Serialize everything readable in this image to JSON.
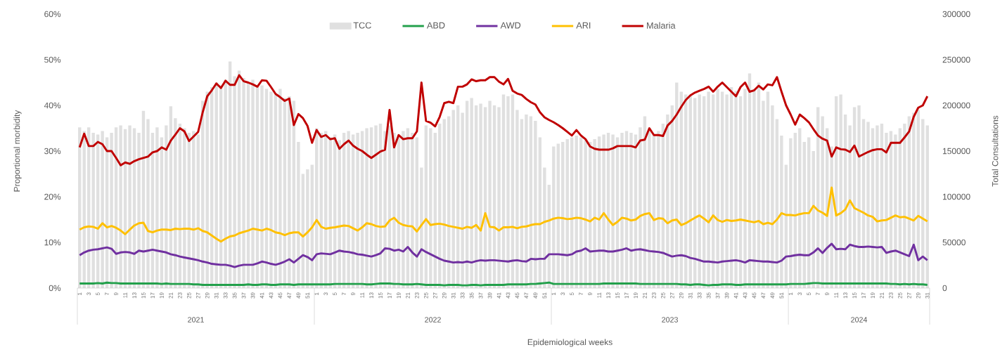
{
  "chart_data": {
    "type": "line",
    "categories": [
      "1",
      null,
      "3",
      null,
      "5",
      null,
      "7",
      null,
      "9",
      null,
      "11",
      null,
      "13",
      null,
      "15",
      null,
      "17",
      null,
      "19",
      null,
      "21",
      null,
      "23",
      null,
      "25",
      null,
      "27",
      null,
      "29",
      null,
      "31",
      null,
      "33",
      null,
      "35",
      null,
      "37",
      null,
      "39",
      null,
      "41",
      null,
      "43",
      null,
      "45",
      null,
      "47",
      null,
      "49",
      null,
      "51",
      null,
      "1",
      null,
      "3",
      null,
      "5",
      null,
      "7",
      null,
      "9",
      null,
      "11",
      null,
      "13",
      null,
      "15",
      null,
      "17",
      null,
      "19",
      null,
      "21",
      null,
      "23",
      null,
      "25",
      null,
      "27",
      null,
      "29",
      null,
      "31",
      null,
      "33",
      null,
      "35",
      null,
      "37",
      null,
      "39",
      null,
      "41",
      null,
      "43",
      null,
      "45",
      null,
      "47",
      null,
      "49",
      null,
      "51",
      null,
      "1",
      null,
      "3",
      null,
      "5",
      null,
      "7",
      null,
      "9",
      null,
      "11",
      null,
      "13",
      null,
      "15",
      null,
      "17",
      null,
      "19",
      null,
      "21",
      null,
      "23",
      null,
      "25",
      null,
      "27",
      null,
      "29",
      null,
      "31",
      null,
      "33",
      null,
      "35",
      null,
      "37",
      null,
      "39",
      null,
      "41",
      null,
      "43",
      null,
      "45",
      null,
      "47",
      null,
      "49",
      null,
      "51",
      null,
      "1",
      null,
      "3",
      null,
      "5",
      null,
      "7",
      null,
      "9",
      null,
      "11",
      null,
      "13",
      null,
      "15",
      null,
      "17",
      null,
      "19",
      null,
      "21",
      null,
      "23",
      null,
      "25",
      null,
      "27",
      null,
      "29",
      null,
      "31"
    ],
    "xlabel": "Epidemiological weeks",
    "ylabel": "Proportional morbidity",
    "y2label": "Total Consultations",
    "annotations": [
      "2021",
      "2022",
      "2023",
      "2024"
    ],
    "ylim": [
      0,
      60
    ],
    "yticks": [
      {
        "value": 0,
        "label": "0%"
      },
      {
        "value": 10,
        "label": "10%"
      },
      {
        "value": 20,
        "label": "20%"
      },
      {
        "value": 30,
        "label": "30%"
      },
      {
        "value": 40,
        "label": "40%"
      },
      {
        "value": 50,
        "label": "50%"
      },
      {
        "value": 60,
        "label": "60%"
      }
    ],
    "y2lim": [
      0,
      300000
    ],
    "y2ticks": [
      0,
      50000,
      100000,
      150000,
      200000,
      250000,
      300000
    ],
    "legend": "top",
    "marker": "none",
    "series": [
      {
        "name": "TCC",
        "type": "bar",
        "axis": "y2",
        "color": "#e0e0e0",
        "values": [
          176000,
          172000,
          176000,
          170000,
          168000,
          172000,
          165000,
          170000,
          176000,
          178000,
          174000,
          178000,
          175000,
          170000,
          194000,
          185000,
          170000,
          176000,
          165000,
          178000,
          199000,
          186000,
          180000,
          175000,
          170000,
          172000,
          168000,
          205000,
          215000,
          220000,
          225000,
          222000,
          228000,
          248000,
          232000,
          238000,
          230000,
          225000,
          228000,
          220000,
          222000,
          218000,
          215000,
          212000,
          218000,
          208000,
          210000,
          205000,
          160000,
          125000,
          130000,
          135000,
          175000,
          170000,
          172000,
          165000,
          168000,
          162000,
          170000,
          172000,
          168000,
          170000,
          172000,
          175000,
          176000,
          178000,
          180000,
          172000,
          178000,
          170000,
          168000,
          172000,
          175000,
          170000,
          165000,
          132000,
          178000,
          175000,
          170000,
          180000,
          185000,
          188000,
          195000,
          200000,
          192000,
          205000,
          208000,
          200000,
          202000,
          198000,
          205000,
          200000,
          198000,
          212000,
          210000,
          212000,
          195000,
          185000,
          190000,
          188000,
          183000,
          165000,
          132000,
          113000,
          155000,
          158000,
          160000,
          163000,
          165000,
          167000,
          165000,
          162000,
          160000,
          163000,
          166000,
          168000,
          170000,
          168000,
          165000,
          170000,
          172000,
          170000,
          168000,
          176000,
          188000,
          175000,
          168000,
          172000,
          180000,
          190000,
          200000,
          225000,
          215000,
          212000,
          210000,
          208000,
          212000,
          210000,
          215000,
          212000,
          218000,
          215000,
          212000,
          220000,
          216000,
          210000,
          218000,
          235000,
          218000,
          225000,
          205000,
          215000,
          200000,
          185000,
          167000,
          135000,
          164000,
          170000,
          175000,
          160000,
          165000,
          150000,
          198000,
          188000,
          175000,
          155000,
          210000,
          212000,
          190000,
          178000,
          198000,
          200000,
          185000,
          182000,
          175000,
          178000,
          180000,
          170000,
          172000,
          168000,
          175000,
          180000,
          188000,
          192000,
          195000,
          185000,
          178000
        ]
      },
      {
        "name": "ABD",
        "color": "#22a04b",
        "values": [
          1,
          1,
          1,
          1,
          1.1,
          1,
          1.2,
          1.1,
          1.1,
          1,
          1,
          1,
          1,
          1,
          1,
          1,
          1,
          1,
          0.9,
          1,
          0.9,
          0.9,
          0.9,
          0.9,
          0.9,
          0.8,
          0.8,
          0.7,
          0.7,
          0.7,
          0.7,
          0.7,
          0.7,
          0.7,
          0.7,
          0.7,
          0.7,
          0.8,
          0.7,
          0.7,
          0.8,
          0.8,
          0.7,
          0.7,
          0.8,
          0.8,
          0.8,
          0.7,
          0.8,
          0.8,
          0.8,
          0.8,
          0.8,
          0.8,
          0.8,
          0.8,
          0.9,
          0.9,
          0.9,
          0.9,
          0.9,
          0.9,
          0.9,
          0.8,
          0.8,
          0.9,
          1,
          1,
          1,
          0.9,
          0.9,
          0.8,
          0.8,
          0.8,
          0.9,
          0.8,
          0.7,
          0.7,
          0.7,
          0.7,
          0.6,
          0.7,
          0.7,
          0.7,
          0.6,
          0.6,
          0.7,
          0.7,
          0.6,
          0.7,
          0.7,
          0.7,
          0.7,
          0.7,
          0.8,
          0.8,
          0.8,
          0.8,
          0.8,
          0.9,
          0.9,
          1,
          1.1,
          1.2,
          0.9,
          0.9,
          0.9,
          0.9,
          0.9,
          0.9,
          0.9,
          0.9,
          0.9,
          0.9,
          0.9,
          1,
          1,
          1,
          1,
          1,
          1,
          1,
          1,
          0.9,
          0.9,
          0.9,
          0.9,
          0.9,
          0.9,
          0.9,
          0.9,
          0.9,
          0.8,
          0.8,
          0.7,
          0.8,
          0.8,
          0.7,
          0.6,
          0.7,
          0.7,
          0.8,
          0.8,
          0.8,
          0.7,
          0.7,
          0.8,
          0.8,
          0.8,
          0.8,
          0.8,
          0.8,
          0.8,
          0.8,
          0.8,
          0.8,
          0.9,
          0.9,
          0.9,
          0.9,
          1,
          1.1,
          1.1,
          1,
          1,
          1,
          1,
          1,
          1,
          1,
          1,
          1,
          1,
          1,
          1,
          1,
          1,
          1,
          0.9,
          0.9,
          0.8,
          0.9,
          0.8,
          0.9,
          0.8,
          0.8,
          0.7
        ]
      },
      {
        "name": "AWD",
        "color": "#7030a0",
        "values": [
          7.2,
          7.8,
          8.2,
          8.4,
          8.5,
          8.7,
          8.9,
          8.6,
          7.5,
          7.8,
          7.9,
          7.8,
          7.5,
          8.2,
          8,
          8.2,
          8.4,
          8.2,
          8,
          7.8,
          7.4,
          7.2,
          6.9,
          6.7,
          6.5,
          6.3,
          6.1,
          5.8,
          5.6,
          5.3,
          5.2,
          5.1,
          5.1,
          4.9,
          4.6,
          4.9,
          5.1,
          5.1,
          5.1,
          5.4,
          5.8,
          5.6,
          5.3,
          5.1,
          5.4,
          5.8,
          6.3,
          5.6,
          6.4,
          7.2,
          6.8,
          6.1,
          7.4,
          7.6,
          7.5,
          7.4,
          7.8,
          8.2,
          8,
          7.9,
          7.7,
          7.4,
          7.3,
          7.1,
          6.9,
          7.2,
          7.6,
          8.7,
          8.6,
          8.2,
          8.4,
          8,
          9,
          7.8,
          6.9,
          8.5,
          7.9,
          7.4,
          6.9,
          6.4,
          6,
          5.8,
          5.6,
          5.7,
          5.6,
          5.8,
          5.6,
          5.9,
          6.1,
          6,
          6.1,
          6.1,
          6,
          5.9,
          5.8,
          6,
          6.1,
          5.9,
          5.8,
          6.4,
          6.3,
          6.4,
          6.4,
          7.4,
          7.4,
          7.4,
          7.3,
          7.2,
          7.4,
          8,
          8.2,
          8.7,
          8,
          8.1,
          8.2,
          8.2,
          8,
          8,
          8.2,
          8.4,
          8.7,
          8.2,
          8.4,
          8.5,
          8.3,
          8.1,
          8,
          7.9,
          7.7,
          7.3,
          6.9,
          7.1,
          7.2,
          7,
          6.6,
          6.4,
          6.1,
          5.8,
          5.8,
          5.7,
          5.6,
          5.8,
          5.9,
          6,
          6.1,
          5.9,
          5.6,
          6.1,
          6,
          5.9,
          5.8,
          5.8,
          5.7,
          5.6,
          6,
          6.9,
          7,
          7.2,
          7.3,
          7.2,
          7.2,
          7.8,
          8.7,
          7.7,
          8.8,
          9.7,
          8.5,
          8.6,
          8.5,
          9.5,
          9.2,
          9,
          9,
          9.1,
          9,
          8.9,
          9,
          7.7,
          8,
          8.2,
          7.8,
          7.4,
          7,
          9.5,
          6.1,
          6.9,
          6.1
        ]
      },
      {
        "name": "ARI",
        "color": "#ffc000",
        "values": [
          12.8,
          13.3,
          13.5,
          13.4,
          13,
          14.2,
          13.3,
          13.6,
          13.2,
          12.6,
          11.8,
          12.8,
          13.7,
          14.2,
          14.3,
          12.5,
          12.2,
          12.6,
          12.8,
          12.8,
          12.7,
          13,
          12.9,
          13,
          13,
          12.8,
          13.1,
          12.5,
          12.2,
          11.5,
          10.8,
          10.2,
          10.8,
          11.3,
          11.5,
          12,
          12.3,
          12.6,
          13,
          12.8,
          12.6,
          13,
          12.7,
          12.2,
          12,
          11.6,
          12,
          12.2,
          12.2,
          11.3,
          12.2,
          13.3,
          14.9,
          13.4,
          13,
          13.2,
          13.3,
          13.5,
          13.7,
          13.6,
          13.1,
          12.6,
          13.3,
          14.2,
          14,
          13.6,
          13.4,
          13.5,
          14.8,
          15.4,
          14.3,
          13.8,
          13.6,
          13.5,
          12.4,
          13.8,
          15.1,
          13.8,
          14,
          14.1,
          13.9,
          13.6,
          13.4,
          13.2,
          13,
          13.4,
          13.2,
          13.8,
          12.6,
          16.4,
          13.4,
          13.3,
          12.6,
          13.3,
          13.3,
          13.4,
          13.1,
          13.4,
          13.5,
          13.8,
          14,
          14,
          14.5,
          14.8,
          15.2,
          15.4,
          15.3,
          15.1,
          15.2,
          15.4,
          15.3,
          15,
          14.6,
          15.4,
          15,
          16.4,
          15,
          13.8,
          14.5,
          15.4,
          15.2,
          14.8,
          15,
          15.8,
          16.2,
          16.4,
          14.9,
          15.3,
          15.2,
          14.2,
          14.8,
          15,
          13.8,
          14.2,
          14.8,
          15.4,
          15.9,
          15.2,
          14.4,
          15.9,
          14.9,
          14.5,
          14.9,
          14.7,
          14.8,
          15,
          14.8,
          14.6,
          14.4,
          14.7,
          14,
          14.3,
          14,
          15,
          16.4,
          16,
          16,
          15.9,
          16.2,
          16.4,
          16.4,
          18,
          17,
          16.5,
          15.8,
          22,
          15.9,
          16.4,
          17.2,
          19.2,
          17.5,
          17,
          16.5,
          15.9,
          15.6,
          14.6,
          14.8,
          14.9,
          15.4,
          15.9,
          15.5,
          15.6,
          15.2,
          14.8,
          15.8,
          15.2,
          14.6
        ]
      },
      {
        "name": "Malaria",
        "color": "#c00000",
        "values": [
          30.8,
          33.8,
          31.1,
          31.1,
          32,
          31.5,
          30,
          30,
          28.5,
          26.9,
          27.5,
          27.2,
          27.8,
          28.2,
          28.5,
          28.8,
          29.7,
          30,
          30.8,
          30.3,
          32.3,
          33.6,
          35,
          34.3,
          32.2,
          33.2,
          34.2,
          38.5,
          42,
          43.3,
          44.8,
          43.8,
          45.4,
          44.5,
          44.5,
          46.6,
          45.3,
          45,
          44.6,
          44.1,
          45.5,
          45.4,
          44,
          42.5,
          41.8,
          41,
          41.5,
          35.7,
          38.1,
          37.2,
          35.5,
          31.8,
          34.6,
          33.1,
          33.5,
          32.6,
          32.8,
          30.5,
          31.5,
          32.3,
          31.2,
          30.5,
          30,
          29.2,
          28.5,
          29.2,
          29.9,
          30.3,
          39,
          30.8,
          33.5,
          32.6,
          32.8,
          32.8,
          34.3,
          45,
          36.6,
          36.2,
          35.4,
          37.5,
          40.5,
          40.8,
          40.5,
          44.1,
          44.1,
          44.6,
          45.7,
          45.3,
          45.5,
          45.5,
          46.2,
          46.2,
          45.2,
          44.6,
          45.8,
          43.2,
          42.6,
          42.3,
          41.4,
          40.7,
          40.2,
          38.5,
          37.4,
          36.8,
          36.3,
          35.7,
          35,
          34.2,
          33.4,
          34.6,
          33.4,
          32.6,
          31,
          30.5,
          30.3,
          30.3,
          30.3,
          30.6,
          31.1,
          31.1,
          31.1,
          31.1,
          30.8,
          32.3,
          32.5,
          35,
          33.5,
          33.5,
          33.3,
          35.6,
          36.6,
          38,
          39.7,
          41.2,
          42.2,
          42.8,
          43.2,
          43.6,
          44.1,
          43,
          44.1,
          45,
          44,
          43,
          42,
          44,
          45,
          43,
          43.3,
          44.3,
          43.5,
          44.6,
          44.4,
          46.2,
          43,
          40,
          38,
          35.8,
          38,
          37.2,
          36.3,
          34.8,
          33.4,
          32.7,
          32.3,
          28.8,
          30.8,
          30.4,
          30.3,
          29.8,
          31.2,
          28.8,
          29.3,
          29.8,
          30.2,
          30.4,
          30.4,
          29.7,
          31.8,
          31.8,
          31.8,
          33,
          34.3,
          37.5,
          39.5,
          40,
          42
        ]
      }
    ]
  }
}
